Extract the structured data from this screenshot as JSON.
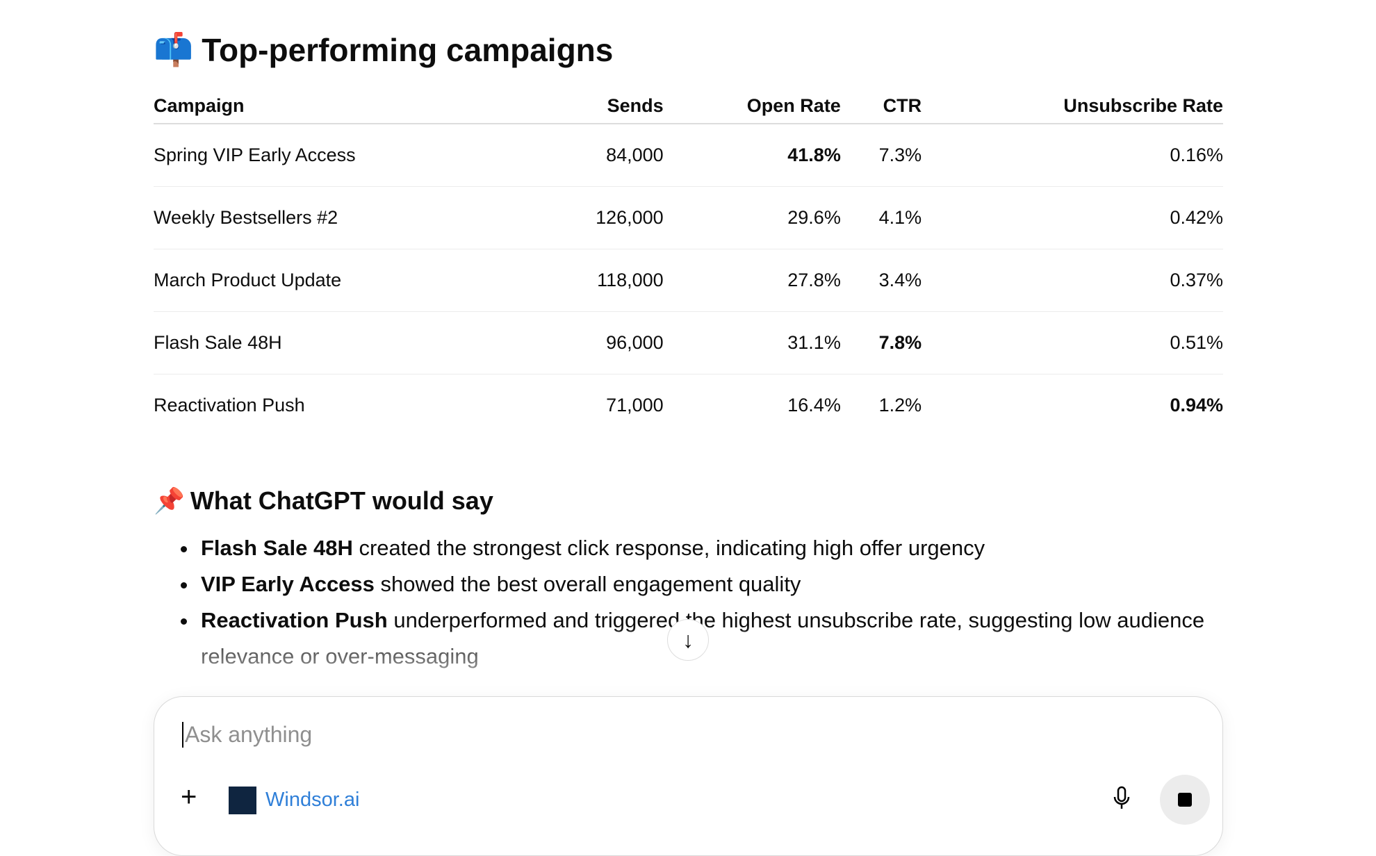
{
  "section1": {
    "emoji": "📫",
    "title": "Top-performing campaigns"
  },
  "table": {
    "headers": [
      "Campaign",
      "Sends",
      "Open Rate",
      "CTR",
      "Unsubscribe Rate"
    ],
    "rows": [
      [
        "Spring VIP Early Access",
        "84,000",
        "41.8%",
        "7.3%",
        "0.16%"
      ],
      [
        "Weekly Bestsellers #2",
        "126,000",
        "29.6%",
        "4.1%",
        "0.42%"
      ],
      [
        "March Product Update",
        "118,000",
        "27.8%",
        "3.4%",
        "0.37%"
      ],
      [
        "Flash Sale 48H",
        "96,000",
        "31.1%",
        "7.8%",
        "0.51%"
      ],
      [
        "Reactivation Push",
        "71,000",
        "16.4%",
        "1.2%",
        "0.94%"
      ]
    ]
  },
  "section2": {
    "emoji": "📌",
    "title": "What ChatGPT would say",
    "bullets": [
      {
        "bold": "Flash Sale 48H",
        "text": " created the strongest click response, indicating high offer urgency"
      },
      {
        "bold": "VIP Early Access",
        "text": " showed the best overall engagement quality"
      },
      {
        "bold": "Reactivation Push",
        "text": " underperformed and triggered the highest unsubscribe rate, suggesting low audience relevance or over-messaging"
      }
    ]
  },
  "composer": {
    "placeholder": "Ask anything",
    "connector": "Windsor.ai",
    "logo_text": "windsor.ai"
  }
}
